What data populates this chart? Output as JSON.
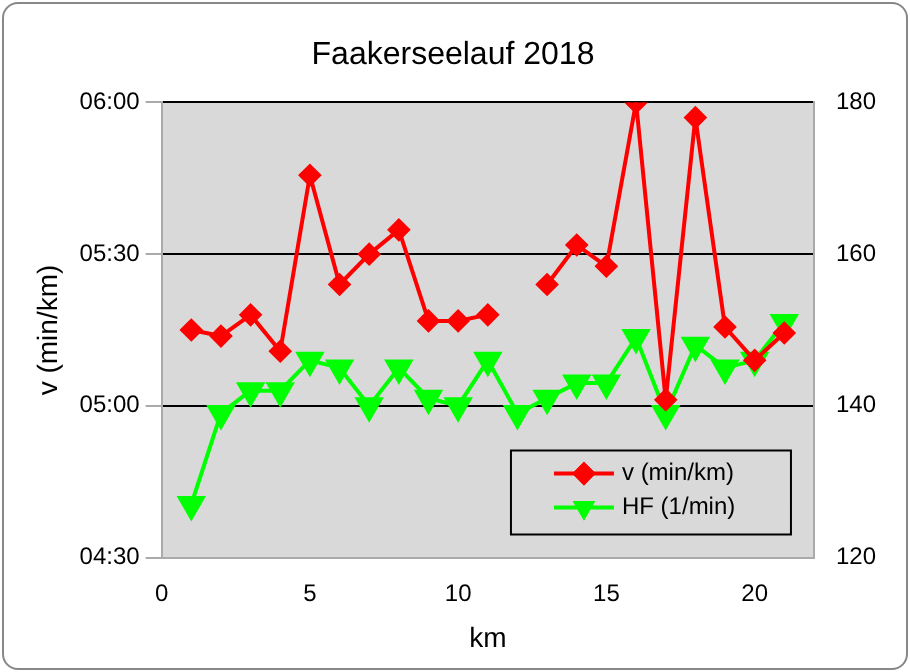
{
  "chart_data": {
    "type": "line",
    "title": "Faakerseelauf 2018",
    "xlabel": "km",
    "ylabel": "v (min/km)",
    "x": [
      1,
      2,
      3,
      4,
      5,
      6,
      7,
      8,
      9,
      10,
      11,
      12,
      13,
      14,
      15,
      16,
      17,
      18,
      19,
      20,
      21
    ],
    "xlim": [
      0,
      22
    ],
    "xticks": [
      0,
      5,
      10,
      15,
      20
    ],
    "ylim": [
      4.5,
      6.0
    ],
    "yticks": [
      {
        "value": 4.5,
        "label": "04:30"
      },
      {
        "value": 5.0,
        "label": "05:00"
      },
      {
        "value": 5.5,
        "label": "05:30"
      },
      {
        "value": 6.0,
        "label": "06:00"
      }
    ],
    "y2lim": [
      120,
      180
    ],
    "y2ticks": [
      120,
      140,
      160,
      180
    ],
    "grid": "y",
    "legend": "bottom right",
    "series": [
      {
        "name": "v (min/km)",
        "color": "#ff0000",
        "marker": "diamond",
        "values": [
          5.25,
          5.23,
          5.3,
          5.18,
          5.76,
          5.4,
          5.5,
          5.58,
          5.28,
          5.28,
          5.3,
          null,
          5.4,
          5.53,
          5.46,
          6.0,
          5.02,
          5.95,
          5.26,
          5.15,
          5.24
        ]
      },
      {
        "name": "HF (1/min)",
        "color": "#00ff00",
        "marker": "triangle",
        "axis": "y2",
        "values": [
          127,
          139,
          142,
          142,
          146,
          145,
          140,
          145,
          141,
          140,
          146,
          139,
          141,
          143,
          143,
          149,
          139,
          148,
          145,
          146,
          151
        ]
      }
    ]
  }
}
